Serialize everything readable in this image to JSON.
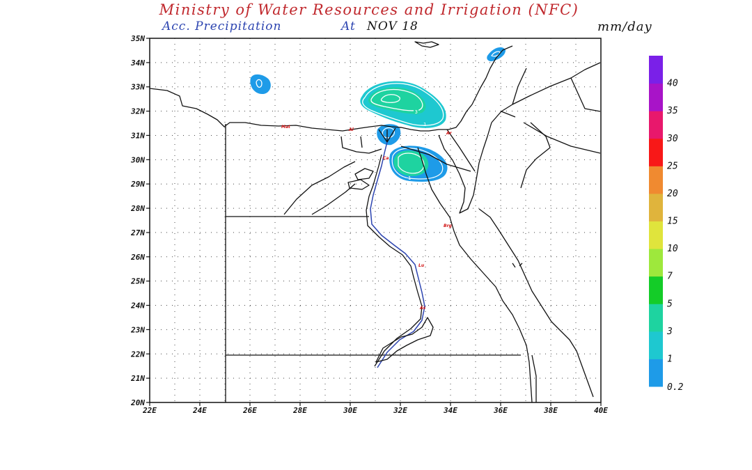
{
  "header": {
    "title": "Ministry of Water Resources and Irrigation (NFC)",
    "subtitle_label": "Acc. Precipitation",
    "subtitle_at": "At",
    "subtitle_date": "NOV 18",
    "units": "mm/day"
  },
  "map": {
    "lat_ticks": [
      "35N",
      "34N",
      "33N",
      "32N",
      "31N",
      "30N",
      "29N",
      "28N",
      "27N",
      "26N",
      "25N",
      "24N",
      "23N",
      "22N",
      "21N",
      "20N"
    ],
    "lon_ticks": [
      "22E",
      "24E",
      "26E",
      "28E",
      "30E",
      "32E",
      "34E",
      "36E",
      "38E",
      "40E"
    ],
    "lat_range": [
      20,
      35
    ],
    "lon_range": [
      22,
      40
    ],
    "grid": "dotted",
    "city_labels": [
      "Mat",
      "Al",
      "Ar",
      "Ca",
      "Brg",
      "Lu",
      "As"
    ],
    "contour_labels": [
      "3",
      "1",
      "1"
    ],
    "precip_cells": [
      {
        "lon": 26.2,
        "lat": 33.1,
        "value": 1
      },
      {
        "lon": 31.6,
        "lat": 32.4,
        "value": 3
      },
      {
        "lon": 31.2,
        "lat": 31.1,
        "value": 1
      },
      {
        "lon": 32.6,
        "lat": 29.9,
        "value": 3
      },
      {
        "lon": 35.8,
        "lat": 34.5,
        "value": 1
      }
    ]
  },
  "colorbar": {
    "labels": [
      "0.2",
      "1",
      "3",
      "5",
      "7",
      "10",
      "15",
      "20",
      "25",
      "30",
      "35",
      "40"
    ],
    "colors": [
      "#1e9be8",
      "#1ec8d0",
      "#1ed3a0",
      "#14cc28",
      "#9ee83c",
      "#e0e43c",
      "#e0b43c",
      "#f08a30",
      "#f81818",
      "#e8186c",
      "#a814c8",
      "#7a20e8"
    ]
  }
}
